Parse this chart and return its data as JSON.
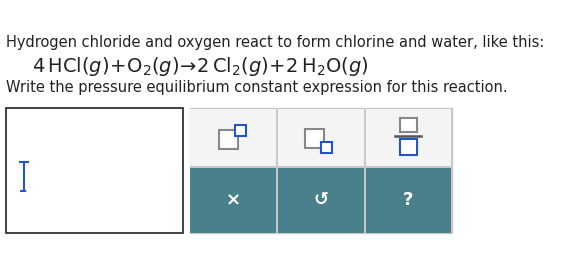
{
  "bg_color": "#ffffff",
  "title_text": "Hydrogen chloride and oxygen react to form chlorine and water, like this:",
  "title_fontsize": 10.5,
  "equation_fontsize": 14,
  "subtitle_text": "Write the pressure equilibrium constant expression for this reaction.",
  "subtitle_fontsize": 10.5,
  "panel_bg": "#4a7f8c",
  "panel_top_bg": "#f4f4f4",
  "panel_border": "#c8c8c8",
  "gray_sq_color": "#888888",
  "blue_sq_color": "#2255cc",
  "btn_text_color": "#ffffff",
  "btn_fontsize": 13,
  "left_box_edge": "#222222",
  "cursor_color": "#2255cc",
  "text_color": "#222222"
}
